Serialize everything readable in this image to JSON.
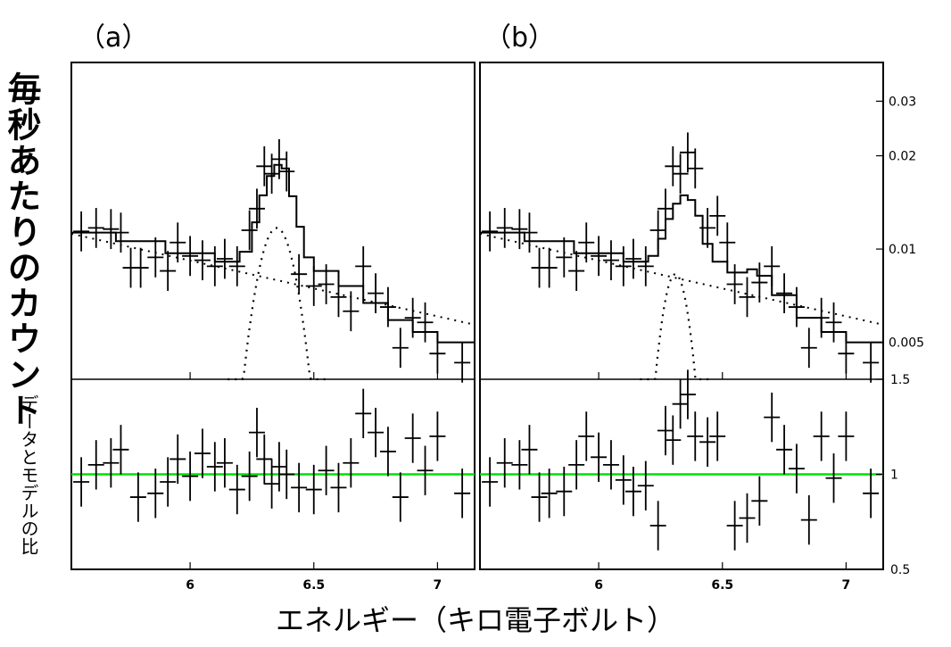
{
  "panel_labels": [
    "（a）",
    "（b）"
  ],
  "y_label_main": "毎秒あたりのカウント",
  "y_label_sub": "データとモデルの比",
  "x_label": "エネルギー（キロ電子ボルト）",
  "colors": {
    "unity_line": "#00e000",
    "data": "#000000"
  },
  "chart_data": [
    {
      "type": "line",
      "panel": "a",
      "title": "",
      "xlabel": "エネルギー（キロ電子ボルト）",
      "ylabel": "毎秒あたりのカウント",
      "xlim": [
        5.52,
        7.15
      ],
      "ylim": [
        0.0038,
        0.04
      ],
      "yscale": "log",
      "xticks": [
        "6",
        "6.5",
        "7"
      ],
      "yticks": [
        "0.03",
        "0.02",
        "0.01",
        "0.005"
      ],
      "data_points": [
        {
          "x": 5.56,
          "y": 0.0114
        },
        {
          "x": 5.62,
          "y": 0.0117
        },
        {
          "x": 5.68,
          "y": 0.0116
        },
        {
          "x": 5.72,
          "y": 0.0113
        },
        {
          "x": 5.76,
          "y": 0.0087
        },
        {
          "x": 5.8,
          "y": 0.0087
        },
        {
          "x": 5.86,
          "y": 0.0094
        },
        {
          "x": 5.91,
          "y": 0.0085
        },
        {
          "x": 5.95,
          "y": 0.0105
        },
        {
          "x": 6.0,
          "y": 0.0095
        },
        {
          "x": 6.05,
          "y": 0.0092
        },
        {
          "x": 6.1,
          "y": 0.0088
        },
        {
          "x": 6.14,
          "y": 0.0093
        },
        {
          "x": 6.19,
          "y": 0.0088
        },
        {
          "x": 6.24,
          "y": 0.0115
        },
        {
          "x": 6.27,
          "y": 0.0135
        },
        {
          "x": 6.3,
          "y": 0.0185
        },
        {
          "x": 6.33,
          "y": 0.0175
        },
        {
          "x": 6.36,
          "y": 0.0195
        },
        {
          "x": 6.39,
          "y": 0.0178
        },
        {
          "x": 6.44,
          "y": 0.0083
        },
        {
          "x": 6.5,
          "y": 0.0076
        },
        {
          "x": 6.55,
          "y": 0.0077
        },
        {
          "x": 6.6,
          "y": 0.007
        },
        {
          "x": 6.65,
          "y": 0.0063
        },
        {
          "x": 6.7,
          "y": 0.0088
        },
        {
          "x": 6.75,
          "y": 0.0072
        },
        {
          "x": 6.8,
          "y": 0.0065
        },
        {
          "x": 6.85,
          "y": 0.0048
        },
        {
          "x": 6.9,
          "y": 0.006
        },
        {
          "x": 6.95,
          "y": 0.0058
        },
        {
          "x": 7.0,
          "y": 0.0046
        },
        {
          "x": 7.1,
          "y": 0.0043
        }
      ],
      "model_step": [
        {
          "x": 5.52,
          "y": 0.0113
        },
        {
          "x": 5.7,
          "y": 0.0106
        },
        {
          "x": 5.9,
          "y": 0.0097
        },
        {
          "x": 6.1,
          "y": 0.0091
        },
        {
          "x": 6.2,
          "y": 0.0098
        },
        {
          "x": 6.25,
          "y": 0.0122
        },
        {
          "x": 6.28,
          "y": 0.0149
        },
        {
          "x": 6.31,
          "y": 0.0172
        },
        {
          "x": 6.34,
          "y": 0.0187
        },
        {
          "x": 6.37,
          "y": 0.0182
        },
        {
          "x": 6.4,
          "y": 0.0148
        },
        {
          "x": 6.43,
          "y": 0.0118
        },
        {
          "x": 6.46,
          "y": 0.0094
        },
        {
          "x": 6.5,
          "y": 0.0085
        },
        {
          "x": 6.6,
          "y": 0.0076
        },
        {
          "x": 6.7,
          "y": 0.0067
        },
        {
          "x": 6.8,
          "y": 0.0059
        },
        {
          "x": 6.9,
          "y": 0.0054
        },
        {
          "x": 7.0,
          "y": 0.005
        },
        {
          "x": 7.15,
          "y": 0.0046
        }
      ],
      "continuum": {
        "x": [
          5.52,
          7.15
        ],
        "y": [
          0.0112,
          0.0057
        ]
      },
      "gaussian_line": {
        "center": 6.35,
        "sigma": 0.09,
        "peak": 0.0117,
        "floor": 0.0038
      }
    },
    {
      "type": "scatter",
      "panel": "a",
      "title": "",
      "ylabel": "データとモデルの比",
      "xlim": [
        5.52,
        7.15
      ],
      "ylim": [
        0.5,
        1.5
      ],
      "reference_y": 1,
      "xticks": [
        "6",
        "6.5",
        "7"
      ],
      "yticks": [],
      "ratio_points": [
        {
          "x": 5.56,
          "y": 0.96
        },
        {
          "x": 5.62,
          "y": 1.05
        },
        {
          "x": 5.68,
          "y": 1.06
        },
        {
          "x": 5.72,
          "y": 1.13
        },
        {
          "x": 5.79,
          "y": 0.88
        },
        {
          "x": 5.86,
          "y": 0.9
        },
        {
          "x": 5.91,
          "y": 0.96
        },
        {
          "x": 5.95,
          "y": 1.08
        },
        {
          "x": 6.0,
          "y": 0.99
        },
        {
          "x": 6.05,
          "y": 1.11
        },
        {
          "x": 6.1,
          "y": 1.04
        },
        {
          "x": 6.14,
          "y": 1.06
        },
        {
          "x": 6.19,
          "y": 0.92
        },
        {
          "x": 6.24,
          "y": 0.99
        },
        {
          "x": 6.27,
          "y": 1.22
        },
        {
          "x": 6.3,
          "y": 1.08
        },
        {
          "x": 6.33,
          "y": 0.95
        },
        {
          "x": 6.36,
          "y": 1.04
        },
        {
          "x": 6.39,
          "y": 1.0
        },
        {
          "x": 6.44,
          "y": 0.93
        },
        {
          "x": 6.5,
          "y": 0.92
        },
        {
          "x": 6.55,
          "y": 1.02
        },
        {
          "x": 6.6,
          "y": 0.93
        },
        {
          "x": 6.65,
          "y": 1.06
        },
        {
          "x": 6.7,
          "y": 1.32
        },
        {
          "x": 6.75,
          "y": 1.22
        },
        {
          "x": 6.8,
          "y": 1.12
        },
        {
          "x": 6.85,
          "y": 0.88
        },
        {
          "x": 6.9,
          "y": 1.19
        },
        {
          "x": 6.95,
          "y": 1.02
        },
        {
          "x": 7.0,
          "y": 1.2
        },
        {
          "x": 7.1,
          "y": 0.9
        }
      ]
    },
    {
      "type": "line",
      "panel": "b",
      "title": "",
      "xlabel": "エネルギー（キロ電子ボルト）",
      "ylabel": "毎秒あたりのカウント",
      "xlim": [
        5.52,
        7.15
      ],
      "ylim": [
        0.0038,
        0.04
      ],
      "yscale": "log",
      "xticks": [
        "6",
        "6.5",
        "7"
      ],
      "yticks": [
        "0.03",
        "0.02",
        "0.01",
        "0.005"
      ],
      "data_points": [
        {
          "x": 5.56,
          "y": 0.0114
        },
        {
          "x": 5.62,
          "y": 0.0117
        },
        {
          "x": 5.68,
          "y": 0.0116
        },
        {
          "x": 5.72,
          "y": 0.0113
        },
        {
          "x": 5.76,
          "y": 0.0087
        },
        {
          "x": 5.8,
          "y": 0.0087
        },
        {
          "x": 5.86,
          "y": 0.0094
        },
        {
          "x": 5.91,
          "y": 0.0085
        },
        {
          "x": 5.95,
          "y": 0.0105
        },
        {
          "x": 6.0,
          "y": 0.0095
        },
        {
          "x": 6.05,
          "y": 0.0092
        },
        {
          "x": 6.1,
          "y": 0.0088
        },
        {
          "x": 6.14,
          "y": 0.0093
        },
        {
          "x": 6.19,
          "y": 0.0088
        },
        {
          "x": 6.24,
          "y": 0.0115
        },
        {
          "x": 6.27,
          "y": 0.0135
        },
        {
          "x": 6.3,
          "y": 0.0185
        },
        {
          "x": 6.33,
          "y": 0.0175
        },
        {
          "x": 6.36,
          "y": 0.0205
        },
        {
          "x": 6.39,
          "y": 0.0182
        },
        {
          "x": 6.44,
          "y": 0.0117
        },
        {
          "x": 6.48,
          "y": 0.0128
        },
        {
          "x": 6.52,
          "y": 0.0105
        },
        {
          "x": 6.55,
          "y": 0.0077
        },
        {
          "x": 6.6,
          "y": 0.007
        },
        {
          "x": 6.65,
          "y": 0.0078
        },
        {
          "x": 6.7,
          "y": 0.0088
        },
        {
          "x": 6.75,
          "y": 0.0072
        },
        {
          "x": 6.8,
          "y": 0.0065
        },
        {
          "x": 6.85,
          "y": 0.0048
        },
        {
          "x": 6.9,
          "y": 0.006
        },
        {
          "x": 6.95,
          "y": 0.0058
        },
        {
          "x": 7.0,
          "y": 0.0046
        },
        {
          "x": 7.1,
          "y": 0.0043
        }
      ],
      "model_step": [
        {
          "x": 5.52,
          "y": 0.0113
        },
        {
          "x": 5.7,
          "y": 0.0106
        },
        {
          "x": 5.9,
          "y": 0.0097
        },
        {
          "x": 6.1,
          "y": 0.0091
        },
        {
          "x": 6.2,
          "y": 0.0095
        },
        {
          "x": 6.24,
          "y": 0.0108
        },
        {
          "x": 6.27,
          "y": 0.0125
        },
        {
          "x": 6.3,
          "y": 0.014
        },
        {
          "x": 6.33,
          "y": 0.0149
        },
        {
          "x": 6.36,
          "y": 0.0144
        },
        {
          "x": 6.39,
          "y": 0.0128
        },
        {
          "x": 6.42,
          "y": 0.0104
        },
        {
          "x": 6.46,
          "y": 0.0091
        },
        {
          "x": 6.52,
          "y": 0.0084
        },
        {
          "x": 6.6,
          "y": 0.0086
        },
        {
          "x": 6.64,
          "y": 0.0082
        },
        {
          "x": 6.7,
          "y": 0.0071
        },
        {
          "x": 6.8,
          "y": 0.006
        },
        {
          "x": 6.9,
          "y": 0.0054
        },
        {
          "x": 7.0,
          "y": 0.005
        },
        {
          "x": 7.15,
          "y": 0.0046
        }
      ],
      "continuum": {
        "x": [
          5.52,
          7.15
        ],
        "y": [
          0.0112,
          0.0057
        ]
      },
      "gaussian_line": {
        "center": 6.31,
        "sigma": 0.065,
        "peak": 0.0083,
        "floor": 0.0038
      }
    },
    {
      "type": "scatter",
      "panel": "b",
      "title": "",
      "ylabel": "データとモデルの比",
      "xlim": [
        5.52,
        7.15
      ],
      "ylim": [
        0.5,
        1.5
      ],
      "reference_y": 1,
      "xticks": [
        "6",
        "6.5",
        "7"
      ],
      "yticks": [
        "1.5",
        "1",
        "0.5"
      ],
      "ratio_points": [
        {
          "x": 5.56,
          "y": 0.96
        },
        {
          "x": 5.62,
          "y": 1.06
        },
        {
          "x": 5.68,
          "y": 1.05
        },
        {
          "x": 5.72,
          "y": 1.13
        },
        {
          "x": 5.76,
          "y": 0.88
        },
        {
          "x": 5.8,
          "y": 0.9
        },
        {
          "x": 5.86,
          "y": 0.91
        },
        {
          "x": 5.91,
          "y": 1.05
        },
        {
          "x": 5.95,
          "y": 1.2
        },
        {
          "x": 6.0,
          "y": 1.09
        },
        {
          "x": 6.05,
          "y": 1.05
        },
        {
          "x": 6.1,
          "y": 0.97
        },
        {
          "x": 6.14,
          "y": 0.91
        },
        {
          "x": 6.19,
          "y": 0.94
        },
        {
          "x": 6.24,
          "y": 0.73
        },
        {
          "x": 6.27,
          "y": 1.23
        },
        {
          "x": 6.3,
          "y": 1.18
        },
        {
          "x": 6.33,
          "y": 1.37
        },
        {
          "x": 6.36,
          "y": 1.42
        },
        {
          "x": 6.39,
          "y": 1.2
        },
        {
          "x": 6.44,
          "y": 1.17
        },
        {
          "x": 6.48,
          "y": 1.2
        },
        {
          "x": 6.55,
          "y": 0.73
        },
        {
          "x": 6.6,
          "y": 0.77
        },
        {
          "x": 6.65,
          "y": 0.86
        },
        {
          "x": 6.7,
          "y": 1.3
        },
        {
          "x": 6.75,
          "y": 1.13
        },
        {
          "x": 6.8,
          "y": 1.03
        },
        {
          "x": 6.85,
          "y": 0.76
        },
        {
          "x": 6.9,
          "y": 1.2
        },
        {
          "x": 6.95,
          "y": 0.98
        },
        {
          "x": 7.0,
          "y": 1.2
        },
        {
          "x": 7.1,
          "y": 0.9
        }
      ]
    }
  ]
}
